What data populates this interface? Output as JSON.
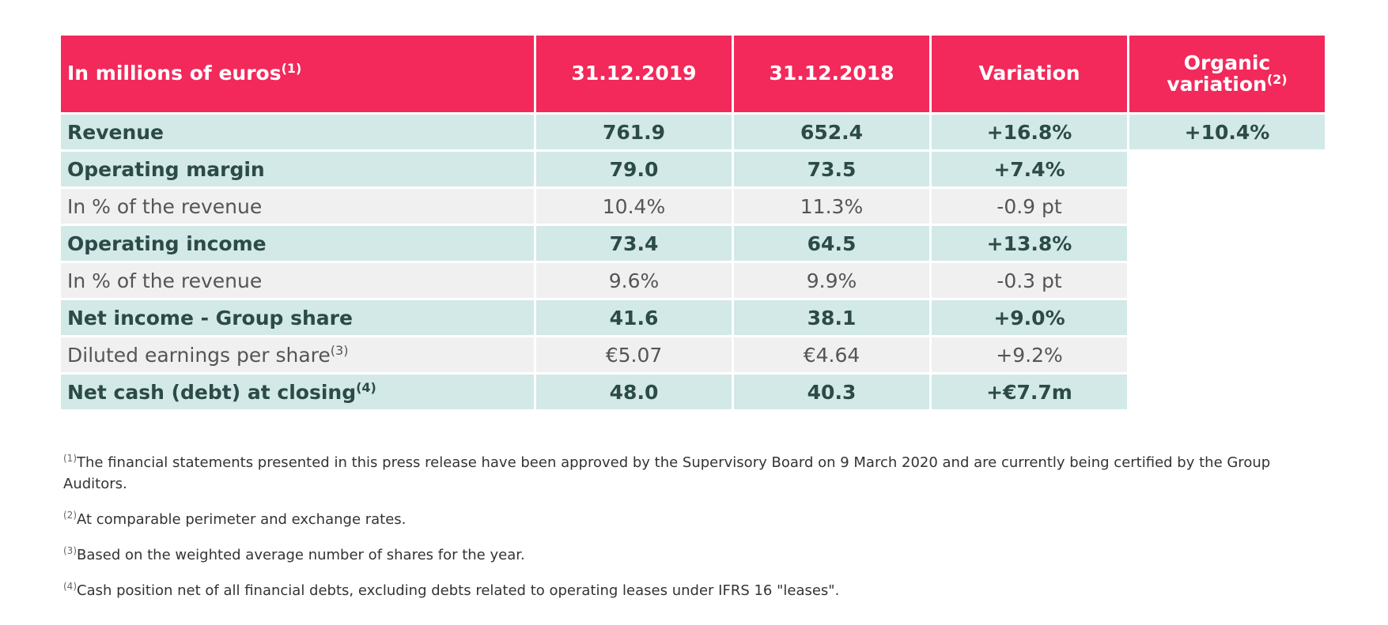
{
  "table": {
    "header": [
      {
        "text": "In millions of euros",
        "sup": "(1)"
      },
      {
        "text": "31.12.2019"
      },
      {
        "text": "31.12.2018"
      },
      {
        "text": "Variation"
      },
      {
        "text": "Organic variation",
        "sup": "(2)"
      }
    ],
    "rows": [
      {
        "bold": true,
        "label": "Revenue",
        "values": [
          "761.9",
          "652.4",
          "+16.8%",
          "+10.4%"
        ]
      },
      {
        "bold": true,
        "label": "Operating margin",
        "values": [
          "79.0",
          "73.5",
          "+7.4%"
        ]
      },
      {
        "bold": false,
        "label": "In % of the revenue",
        "values": [
          "10.4%",
          "11.3%",
          "-0.9 pt"
        ]
      },
      {
        "bold": true,
        "label": "Operating income",
        "values": [
          "73.4",
          "64.5",
          "+13.8%"
        ]
      },
      {
        "bold": false,
        "label": "In % of the revenue",
        "values": [
          "9.6%",
          "9.9%",
          "-0.3 pt"
        ]
      },
      {
        "bold": true,
        "label": "Net income - Group share",
        "values": [
          "41.6",
          "38.1",
          "+9.0%"
        ]
      },
      {
        "bold": false,
        "label": "Diluted earnings per share",
        "sup": "(3)",
        "values": [
          "€5.07",
          "€4.64",
          "+9.2%"
        ]
      },
      {
        "bold": true,
        "label": "Net cash (debt) at closing",
        "sup": "(4)",
        "values": [
          "48.0",
          "40.3",
          "+€7.7m"
        ]
      }
    ]
  },
  "footnotes": [
    {
      "mark": "(1)",
      "text": "The financial statements presented in this press release have been approved by the Supervisory Board on 9 March 2020 and are currently being certified by the Group Auditors."
    },
    {
      "mark": "(2)",
      "text": "At comparable perimeter and exchange rates."
    },
    {
      "mark": "(3)",
      "text": "Based on the weighted average number of shares for the year."
    },
    {
      "mark": "(4)",
      "text": "Cash position net of all financial debts, excluding debts related to operating leases under IFRS 16 \"leases\"."
    }
  ]
}
